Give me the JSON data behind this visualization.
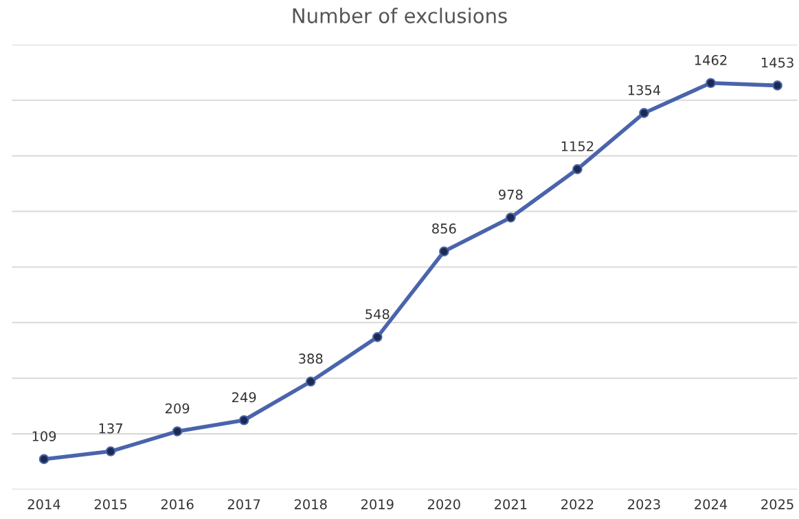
{
  "chart_data": {
    "type": "line",
    "title": "Number of exclusions",
    "categories": [
      "2014",
      "2015",
      "2016",
      "2017",
      "2018",
      "2019",
      "2020",
      "2021",
      "2022",
      "2023",
      "2024",
      "2025"
    ],
    "series": [
      {
        "color": "#4a64ac",
        "values": [
          109,
          137,
          209,
          249,
          388,
          548,
          856,
          978,
          1152,
          1354,
          1462,
          1453
        ]
      }
    ],
    "ylim": [
      0,
      1600
    ],
    "yticks": [
      {
        "value": 0,
        "label": null
      },
      {
        "value": 200,
        "label": null
      },
      {
        "value": 400,
        "label": null
      },
      {
        "value": 600,
        "label": null
      },
      {
        "value": 800,
        "label": null
      },
      {
        "value": 1000,
        "label": null
      },
      {
        "value": 1200,
        "label": null
      },
      {
        "value": 1400,
        "label": null
      },
      {
        "value": 1600,
        "label": null
      }
    ],
    "tick_labels": "x",
    "grid": "y",
    "marker": "circle",
    "line_style": "solid",
    "data_labels": true
  }
}
